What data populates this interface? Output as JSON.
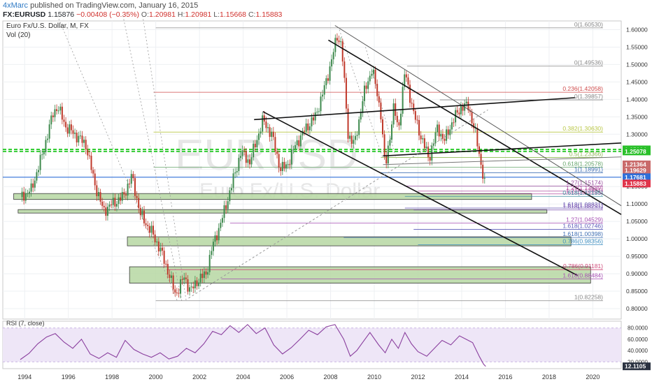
{
  "header": {
    "author": "4xMarc",
    "published": "published on TradingView.com, January 16, 2015",
    "symbol": "FX:EURUSD",
    "last": "1.15876",
    "change": "−0.00408 (−0.35%)",
    "o_label": "O:",
    "o": "1.20981",
    "h_label": "H:",
    "h": "1.20981",
    "l_label": "L:",
    "l": "1.15668",
    "c_label": "C:",
    "c": "1.15883"
  },
  "pane": {
    "title": "Euro Fx/U.S. Dollar, M, FX",
    "volume": "Vol (20)",
    "watermark_sym": "EURUSD",
    "watermark_desc": "Euro Fx/U.S. Dollar"
  },
  "rsi": {
    "title": "RSI (7, close)",
    "ticks": [
      "80.0000",
      "60.0000",
      "40.0000",
      "20.0000"
    ],
    "tick_values": [
      80,
      60,
      40,
      20
    ],
    "last": "12.1105",
    "last_value": 12.11,
    "ylim": [
      8,
      92
    ],
    "band": [
      20,
      80
    ],
    "points": [
      [
        1993.8,
        24
      ],
      [
        1994.2,
        35
      ],
      [
        1994.6,
        52
      ],
      [
        1995.0,
        64
      ],
      [
        1995.4,
        70
      ],
      [
        1995.8,
        55
      ],
      [
        1996.2,
        44
      ],
      [
        1996.6,
        60
      ],
      [
        1997.0,
        34
      ],
      [
        1997.4,
        26
      ],
      [
        1997.8,
        36
      ],
      [
        1998.2,
        28
      ],
      [
        1998.6,
        58
      ],
      [
        1999.0,
        42
      ],
      [
        1999.4,
        34
      ],
      [
        1999.8,
        28
      ],
      [
        2000.2,
        36
      ],
      [
        2000.6,
        25
      ],
      [
        2001.0,
        30
      ],
      [
        2001.4,
        44
      ],
      [
        2001.8,
        36
      ],
      [
        2002.2,
        52
      ],
      [
        2002.6,
        74
      ],
      [
        2003.0,
        68
      ],
      [
        2003.4,
        84
      ],
      [
        2003.8,
        72
      ],
      [
        2004.2,
        86
      ],
      [
        2004.6,
        70
      ],
      [
        2005.0,
        80
      ],
      [
        2005.4,
        50
      ],
      [
        2005.8,
        34
      ],
      [
        2006.2,
        45
      ],
      [
        2006.6,
        60
      ],
      [
        2007.0,
        76
      ],
      [
        2007.4,
        68
      ],
      [
        2007.8,
        82
      ],
      [
        2008.2,
        86
      ],
      [
        2008.6,
        60
      ],
      [
        2008.9,
        30
      ],
      [
        2009.2,
        40
      ],
      [
        2009.5,
        56
      ],
      [
        2009.8,
        72
      ],
      [
        2010.2,
        50
      ],
      [
        2010.5,
        36
      ],
      [
        2010.8,
        60
      ],
      [
        2011.1,
        44
      ],
      [
        2011.4,
        72
      ],
      [
        2011.7,
        52
      ],
      [
        2012.0,
        38
      ],
      [
        2012.4,
        30
      ],
      [
        2012.8,
        46
      ],
      [
        2013.1,
        58
      ],
      [
        2013.5,
        50
      ],
      [
        2013.9,
        66
      ],
      [
        2014.2,
        60
      ],
      [
        2014.5,
        54
      ],
      [
        2014.8,
        30
      ],
      [
        2015.0,
        16
      ],
      [
        2015.1,
        12.11
      ]
    ]
  },
  "chart_data": {
    "type": "candlestick",
    "title": "Euro Fx/U.S. Dollar, M, FX",
    "x_ticks": [
      1994,
      1996,
      1998,
      2000,
      2002,
      2004,
      2006,
      2008,
      2010,
      2012,
      2014,
      2016,
      2018,
      2020
    ],
    "xlim": [
      1993.0,
      2021.3
    ],
    "ylim": [
      0.77,
      1.625
    ],
    "y_ticks": [
      "1.60000",
      "1.55000",
      "1.50000",
      "1.45000",
      "1.40000",
      "1.35000",
      "1.30000",
      "1.25000",
      "1.20000",
      "1.15000",
      "1.10000",
      "1.05000",
      "1.00000",
      "0.95000",
      "0.90000",
      "0.85000",
      "0.80000"
    ],
    "y_tick_values": [
      1.6,
      1.55,
      1.5,
      1.45,
      1.4,
      1.35,
      1.3,
      1.25,
      1.2,
      1.15,
      1.1,
      1.05,
      1.0,
      0.95,
      0.9,
      0.85,
      0.8
    ],
    "price_path": [
      [
        1993.8,
        1.12
      ],
      [
        1994.3,
        1.14
      ],
      [
        1994.8,
        1.24
      ],
      [
        1995.3,
        1.36
      ],
      [
        1995.5,
        1.38
      ],
      [
        1995.9,
        1.32
      ],
      [
        1996.3,
        1.3
      ],
      [
        1996.8,
        1.27
      ],
      [
        1997.2,
        1.16
      ],
      [
        1997.6,
        1.08
      ],
      [
        1998.0,
        1.1
      ],
      [
        1998.5,
        1.12
      ],
      [
        1998.9,
        1.18
      ],
      [
        1999.3,
        1.07
      ],
      [
        1999.8,
        1.02
      ],
      [
        2000.2,
        0.97
      ],
      [
        2000.6,
        0.9
      ],
      [
        2000.9,
        0.84
      ],
      [
        2001.3,
        0.89
      ],
      [
        2001.6,
        0.85
      ],
      [
        2001.9,
        0.88
      ],
      [
        2002.3,
        0.9
      ],
      [
        2002.6,
        0.98
      ],
      [
        2003.0,
        1.05
      ],
      [
        2003.5,
        1.16
      ],
      [
        2003.9,
        1.25
      ],
      [
        2004.3,
        1.22
      ],
      [
        2004.9,
        1.34
      ],
      [
        2005.3,
        1.3
      ],
      [
        2005.7,
        1.2
      ],
      [
        2006.0,
        1.21
      ],
      [
        2006.4,
        1.27
      ],
      [
        2006.9,
        1.32
      ],
      [
        2007.3,
        1.35
      ],
      [
        2007.8,
        1.45
      ],
      [
        2008.3,
        1.58
      ],
      [
        2008.5,
        1.56
      ],
      [
        2008.8,
        1.3
      ],
      [
        2009.1,
        1.27
      ],
      [
        2009.5,
        1.41
      ],
      [
        2009.9,
        1.49
      ],
      [
        2010.3,
        1.36
      ],
      [
        2010.5,
        1.2
      ],
      [
        2010.9,
        1.38
      ],
      [
        2011.1,
        1.31
      ],
      [
        2011.4,
        1.48
      ],
      [
        2011.8,
        1.36
      ],
      [
        2012.1,
        1.3
      ],
      [
        2012.5,
        1.23
      ],
      [
        2012.9,
        1.32
      ],
      [
        2013.2,
        1.28
      ],
      [
        2013.6,
        1.34
      ],
      [
        2014.0,
        1.38
      ],
      [
        2014.3,
        1.38
      ],
      [
        2014.6,
        1.31
      ],
      [
        2014.9,
        1.21
      ],
      [
        2015.05,
        1.1588
      ]
    ],
    "last_price": 1.15883,
    "price_badges": [
      {
        "label": "1.25664",
        "value": 1.25664,
        "color": "#2ac02a"
      },
      {
        "label": "1.25078",
        "value": 1.25078,
        "color": "#2ac02a"
      },
      {
        "label": "1.21364",
        "value": 1.21364,
        "color": "#c96a6a"
      },
      {
        "label": "1.19629",
        "value": 1.19629,
        "color": "#c96a6a"
      },
      {
        "label": "1.17681",
        "value": 1.17681,
        "color": "#2f6fd8"
      },
      {
        "label": "1.15883",
        "value": 1.15883,
        "color": "#e0344a"
      }
    ],
    "horizontal_levels": [
      {
        "value": 1.25664,
        "color": "#33cc33"
      },
      {
        "value": 1.25078,
        "color": "#33cc33"
      },
      {
        "value": 1.17681,
        "color": "#2f6fd8"
      }
    ],
    "fib_levels": [
      {
        "label": "0(1.60530)",
        "value": 1.6053,
        "x0": 2000.0,
        "color": "#888888"
      },
      {
        "label": "0(1.49536)",
        "value": 1.49536,
        "x0": 2011.5,
        "color": "#888888"
      },
      {
        "label": "0.236(1.42058)",
        "value": 1.42058,
        "x0": 1999.9,
        "color": "#cf4b4b"
      },
      {
        "label": "0(1.39857)",
        "value": 1.39857,
        "x0": 2013.0,
        "color": "#888888"
      },
      {
        "label": "0.382(1.30630)",
        "value": 1.3063,
        "x0": 1999.9,
        "color": "#b9c746"
      },
      {
        "label": "0.5(1.23366)",
        "value": 1.23366,
        "x0": 2010.3,
        "color": "#8fb955"
      },
      {
        "label": "0.618(1.20578)",
        "value": 1.20578,
        "x0": 1999.9,
        "color": "#67a66b"
      },
      {
        "label": "1(1.18991)",
        "value": 1.18991,
        "x0": 2010.3,
        "color": "#3f6fb3"
      },
      {
        "label": "1.27(1.15174)",
        "value": 1.15174,
        "x0": 2011.4,
        "color": "#9b4fa0"
      },
      {
        "label": "1.27(1.13689)",
        "value": 1.13689,
        "x0": 2012.0,
        "color": "#b24fa0"
      },
      {
        "label": "1.27(1.12891)",
        "value": 1.12891,
        "x0": 2012.4,
        "color": "#b24fa0"
      },
      {
        "label": "0.618(1.12195)",
        "value": 1.12195,
        "x0": 2011.4,
        "color": "#3f8fa0"
      },
      {
        "label": "1.618(1.08831)",
        "value": 1.08831,
        "x0": 2011.4,
        "color": "#5f4fb0"
      },
      {
        "label": "1.618(1.08291)",
        "value": 1.08291,
        "x0": 2011.8,
        "color": "#7a4fb0"
      },
      {
        "label": "1.27(1.04529)",
        "value": 1.04529,
        "x0": 2003.4,
        "color": "#a64fb3"
      },
      {
        "label": "1.618(1.02746)",
        "value": 1.02746,
        "x0": 2011.8,
        "color": "#5a59b8"
      },
      {
        "label": "1.618(1.00398)",
        "value": 1.00398,
        "x0": 2008.6,
        "color": "#3f6fb3"
      },
      {
        "label": "0.786(0.98356)",
        "value": 0.98356,
        "x0": 2012.0,
        "color": "#3f8fc0"
      },
      {
        "label": "0.786(0.91181)",
        "value": 0.91181,
        "x0": 2000.5,
        "color": "#cf4b7a"
      },
      {
        "label": "1.618(0.88484)",
        "value": 0.88484,
        "x0": 2003.0,
        "color": "#a64fb3"
      },
      {
        "label": "1(0.82258)",
        "value": 0.82258,
        "x0": 2000.0,
        "color": "#888888"
      }
    ],
    "zones": [
      {
        "x0": 1993.5,
        "x1": 2017.2,
        "y0": 1.113,
        "y1": 1.13
      },
      {
        "x0": 1993.7,
        "x1": 2017.9,
        "y0": 1.074,
        "y1": 1.084
      },
      {
        "x0": 1998.7,
        "x1": 2019.0,
        "y0": 0.98,
        "y1": 1.006
      },
      {
        "x0": 1998.8,
        "x1": 2019.9,
        "y0": 0.873,
        "y1": 0.92
      }
    ],
    "trendlines": [
      {
        "p0": [
          2007.9,
          1.57
        ],
        "p1": [
          2021.3,
          1.07
        ],
        "color": "#111111",
        "width": 1.6
      },
      {
        "p0": [
          2008.2,
          1.612
        ],
        "p1": [
          2021.3,
          1.095
        ],
        "color": "#555555",
        "width": 1.0
      },
      {
        "p0": [
          2004.9,
          1.365
        ],
        "p1": [
          2019.3,
          0.895
        ],
        "color": "#111111",
        "width": 1.6
      },
      {
        "p0": [
          2004.5,
          1.342
        ],
        "p1": [
          2019.2,
          1.405
        ],
        "color": "#111111",
        "width": 1.6
      },
      {
        "p0": [
          2010.4,
          1.238
        ],
        "p1": [
          2021.3,
          1.275
        ],
        "color": "#111111",
        "width": 1.6
      },
      {
        "p0": [
          2010.4,
          1.213
        ],
        "p1": [
          2021.3,
          1.235
        ],
        "color": "#777777",
        "width": 1.0
      },
      {
        "p0": [
          2001.5,
          0.83
        ],
        "p1": [
          2015.2,
          1.37
        ],
        "color": "#9a9a9a",
        "width": 1.0,
        "dash": true
      }
    ],
    "fans": [
      {
        "p0": [
          1995.5,
          1.64
        ],
        "p1": [
          2001.0,
          0.82
        ]
      },
      {
        "p0": [
          1998.5,
          1.64
        ],
        "p1": [
          2001.2,
          0.82
        ]
      },
      {
        "p0": [
          1999.4,
          1.64
        ],
        "p1": [
          2001.4,
          0.82
        ]
      },
      {
        "p0": [
          2008.4,
          1.6
        ],
        "p1": [
          2010.4,
          1.23
        ]
      },
      {
        "p0": [
          2009.6,
          1.55
        ],
        "p1": [
          2011.0,
          1.23
        ]
      }
    ]
  }
}
